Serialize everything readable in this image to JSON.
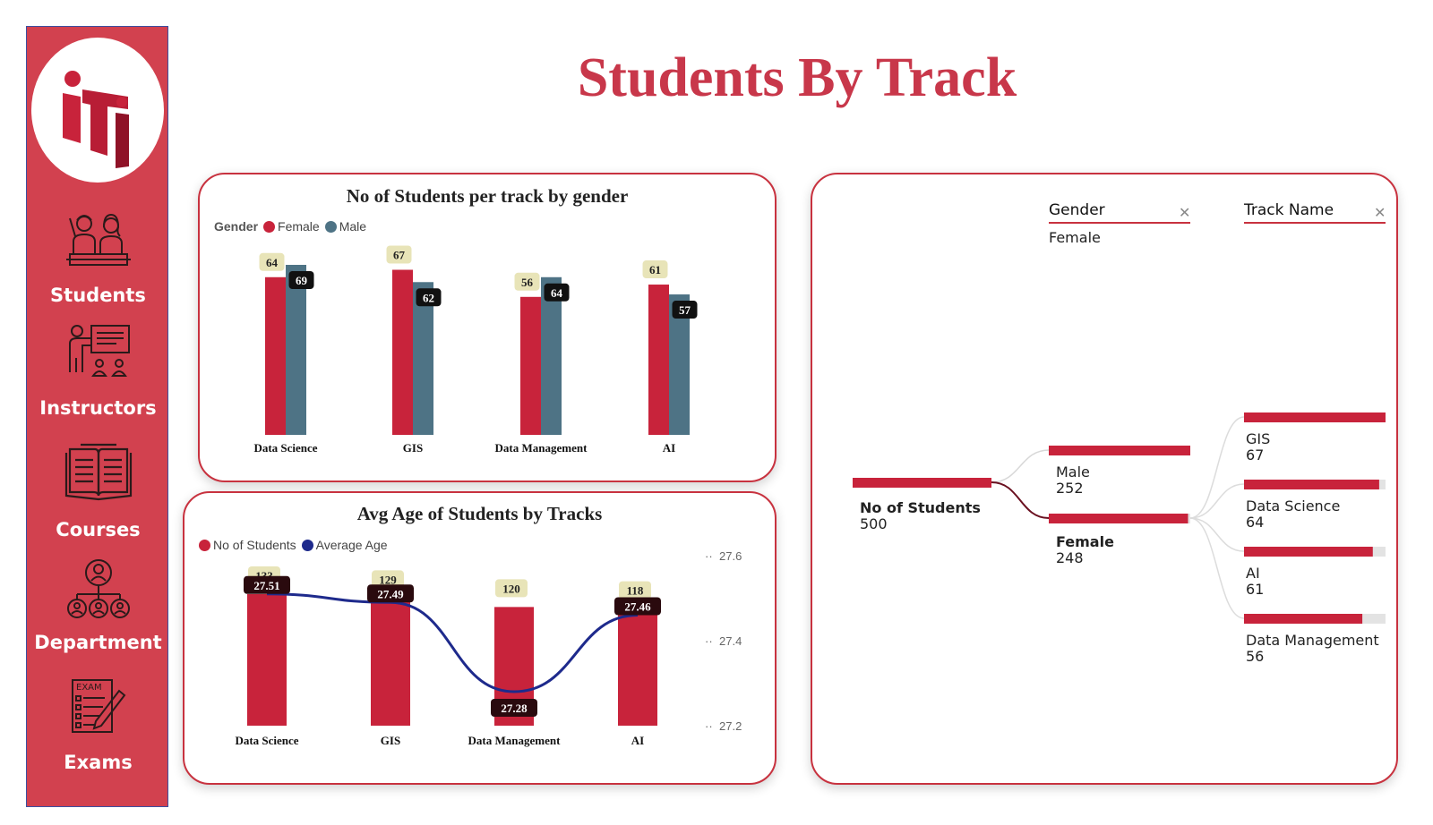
{
  "page_title": "Students By Track",
  "logo": {
    "text": "iti"
  },
  "sidebar": {
    "items": [
      {
        "id": "students",
        "label": "Students",
        "icon": "students-icon"
      },
      {
        "id": "instructors",
        "label": "Instructors",
        "icon": "instructor-icon"
      },
      {
        "id": "courses",
        "label": "Courses",
        "icon": "book-icon"
      },
      {
        "id": "department",
        "label": "Department",
        "icon": "org-chart-icon"
      },
      {
        "id": "exams",
        "label": "Exams",
        "icon": "exam-icon",
        "icon_text": "EXAM"
      }
    ]
  },
  "colors": {
    "primary": "#c8233b",
    "male": "#4e7385",
    "avg_line": "#1e2a8c",
    "sidebar": "#d2414f"
  },
  "gender_chart": {
    "title": "No of Students per track by gender",
    "legend_title": "Gender",
    "legend": [
      "Female",
      "Male"
    ]
  },
  "age_chart": {
    "title": "Avg Age of Students by Tracks",
    "legend": [
      "No of Students",
      "Average Age"
    ]
  },
  "chart_data": [
    {
      "type": "bar",
      "title": "No of Students per track by gender",
      "categories": [
        "Data Science",
        "GIS",
        "Data Management",
        "AI"
      ],
      "series": [
        {
          "name": "Female",
          "values": [
            64,
            67,
            56,
            61
          ]
        },
        {
          "name": "Male",
          "values": [
            69,
            62,
            64,
            57
          ]
        }
      ],
      "legend_title": "Gender",
      "legend_position": "top-left"
    },
    {
      "type": "bar",
      "title": "Avg Age of Students by Tracks",
      "categories": [
        "Data Science",
        "GIS",
        "Data Management",
        "AI"
      ],
      "series": [
        {
          "name": "No of Students",
          "values": [
            133,
            129,
            120,
            118
          ]
        },
        {
          "name": "Average Age",
          "type": "line",
          "axis": "right",
          "values": [
            27.51,
            27.49,
            27.28,
            27.46
          ]
        }
      ],
      "y2_ticks": [
        "27.2",
        "27.4",
        "27.6"
      ],
      "legend_position": "top-left"
    }
  ],
  "decomp_tree": {
    "filters": [
      {
        "field": "Gender",
        "value": "Female"
      },
      {
        "field": "Track Name",
        "value": ""
      }
    ],
    "root": {
      "name": "No of Students",
      "value": "500"
    },
    "level1": [
      {
        "name": "Male",
        "value": "252",
        "selected": false
      },
      {
        "name": "Female",
        "value": "248",
        "selected": true
      }
    ],
    "level2": [
      {
        "name": "GIS",
        "value": "67",
        "fraction": 1.0
      },
      {
        "name": "Data Science",
        "value": "64",
        "fraction": 0.955
      },
      {
        "name": "AI",
        "value": "61",
        "fraction": 0.91
      },
      {
        "name": "Data Management",
        "value": "56",
        "fraction": 0.836
      }
    ]
  }
}
